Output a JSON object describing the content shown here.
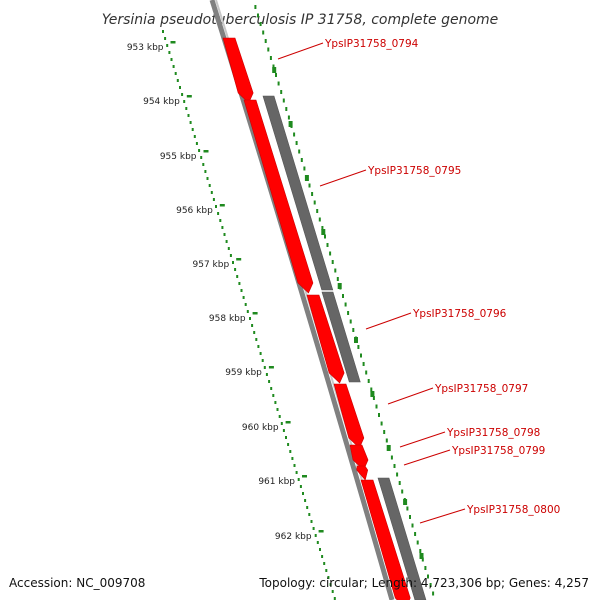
{
  "title": "Yersinia pseudotuberculosis IP 31758, complete genome",
  "footer": {
    "accession": "Accession: NC_009708",
    "summary": "Topology: circular; Length: 4,723,306 bp; Genes: 4,257"
  },
  "scale_labels": [
    "953 kbp",
    "954 kbp",
    "955 kbp",
    "956 kbp",
    "957 kbp",
    "958 kbp",
    "959 kbp",
    "960 kbp",
    "961 kbp",
    "962 kbp"
  ],
  "genes": [
    {
      "label": "YpsIP31758_0794",
      "strand": "forward"
    },
    {
      "label": "YpsIP31758_0795",
      "strand": "forward"
    },
    {
      "label": "YpsIP31758_0796",
      "strand": "forward"
    },
    {
      "label": "YpsIP31758_0797",
      "strand": "forward"
    },
    {
      "label": "YpsIP31758_0798",
      "strand": "forward"
    },
    {
      "label": "YpsIP31758_0799",
      "strand": "forward"
    },
    {
      "label": "YpsIP31758_0800",
      "strand": "forward"
    }
  ],
  "colors": {
    "gene": "#ff0000",
    "feature": "#666666",
    "backbone": "#808080",
    "ticks": "#1f8a1f",
    "labels": "#cc0000"
  }
}
